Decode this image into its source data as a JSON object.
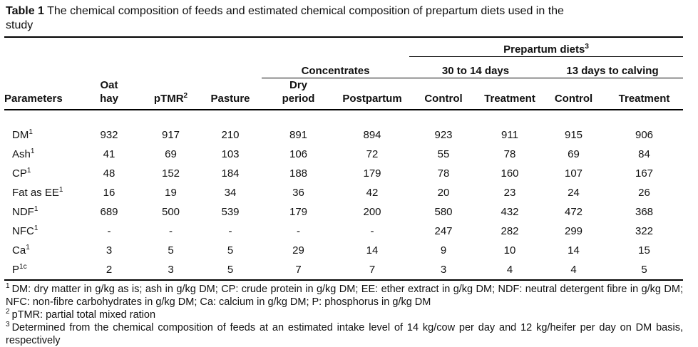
{
  "title": {
    "bold": "Table 1",
    "rest": " The chemical composition of feeds and estimated chemical composition of prepartum diets used in the\nstudy"
  },
  "table": {
    "group_headers": {
      "prepartum": {
        "label": "Prepartum diets",
        "sup": "3"
      },
      "concentrates": "Concentrates",
      "period1": "30 to 14 days",
      "period2": "13 days to calving"
    },
    "columns": [
      {
        "label": "Parameters"
      },
      {
        "label": "Oat\nhay"
      },
      {
        "label": "pTMR",
        "sup": "2"
      },
      {
        "label": "Pasture"
      },
      {
        "label": "Dry\nperiod"
      },
      {
        "label": "Postpartum"
      },
      {
        "label": "Control"
      },
      {
        "label": "Treatment"
      },
      {
        "label": "Control"
      },
      {
        "label": "Treatment"
      }
    ],
    "rows": [
      {
        "param": "DM",
        "sup": "1",
        "values": [
          "932",
          "917",
          "210",
          "891",
          "894",
          "923",
          "911",
          "915",
          "906"
        ]
      },
      {
        "param": "Ash",
        "sup": "1",
        "values": [
          "41",
          "69",
          "103",
          "106",
          "72",
          "55",
          "78",
          "69",
          "84"
        ]
      },
      {
        "param": "CP",
        "sup": "1",
        "values": [
          "48",
          "152",
          "184",
          "188",
          "179",
          "78",
          "160",
          "107",
          "167"
        ]
      },
      {
        "param": "Fat as EE",
        "sup": "1",
        "values": [
          "16",
          "19",
          "34",
          "36",
          "42",
          "20",
          "23",
          "24",
          "26"
        ]
      },
      {
        "param": "NDF",
        "sup": "1",
        "values": [
          "689",
          "500",
          "539",
          "179",
          "200",
          "580",
          "432",
          "472",
          "368"
        ]
      },
      {
        "param": "NFC",
        "sup": "1",
        "values": [
          "-",
          "-",
          "-",
          "-",
          "-",
          "247",
          "282",
          "299",
          "322"
        ]
      },
      {
        "param": "Ca",
        "sup": "1",
        "values": [
          "3",
          "5",
          "5",
          "29",
          "14",
          "9",
          "10",
          "14",
          "15"
        ]
      },
      {
        "param": "P",
        "sup": "1c",
        "values": [
          "2",
          "3",
          "5",
          "7",
          "7",
          "3",
          "4",
          "4",
          "5"
        ]
      }
    ]
  },
  "footnotes": [
    {
      "marker": "1",
      "text": "DM: dry matter in g/kg as is; ash in g/kg DM; CP: crude protein in g/kg DM; EE: ether extract in g/kg DM; NDF: neutral detergent fibre in g/kg DM; NFC: non-fibre carbohydrates in g/kg DM; Ca: calcium in g/kg DM; P: phosphorus in g/kg DM"
    },
    {
      "marker": "2",
      "text": "pTMR: partial total mixed ration"
    },
    {
      "marker": "3",
      "text": "Determined from the chemical composition of feeds at an estimated intake level of 14 kg/cow per day and 12 kg/heifer per day on DM basis, respectively"
    }
  ]
}
